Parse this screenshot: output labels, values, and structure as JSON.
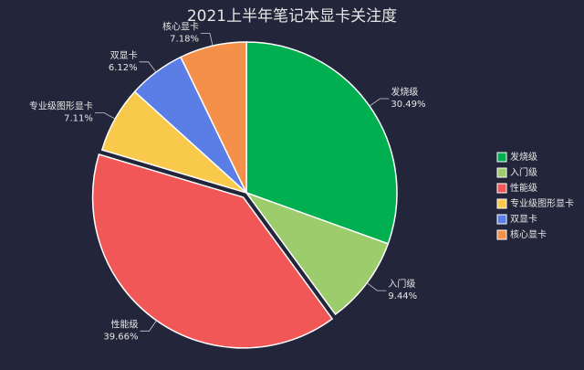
{
  "chart_data": {
    "type": "pie",
    "title": "2021上半年笔记本显卡关注度",
    "categories": [
      "发烧级",
      "入门级",
      "性能级",
      "专业级图形显卡",
      "双显卡",
      "核心显卡"
    ],
    "values": [
      30.49,
      9.44,
      39.66,
      7.11,
      6.12,
      7.18
    ],
    "value_labels": [
      "30.49%",
      "9.44%",
      "39.66%",
      "7.11%",
      "6.12%",
      "7.18%"
    ],
    "colors": [
      "#00b050",
      "#9ccc6b",
      "#f25757",
      "#f8c94a",
      "#5a7ee6",
      "#f5904b"
    ],
    "legend": "right"
  }
}
